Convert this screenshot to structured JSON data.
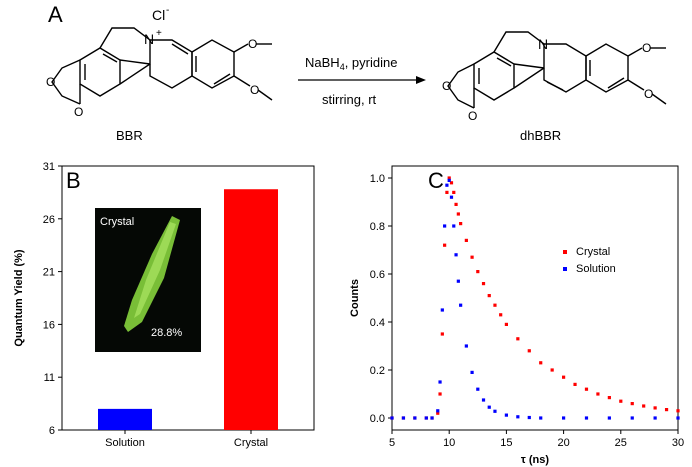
{
  "panels": {
    "a": "A",
    "b": "B",
    "c": "C"
  },
  "scheme": {
    "reactant_label": "BBR",
    "product_label": "dhBBR",
    "counterion": "Cl",
    "counterion_charge": "-",
    "cation_atom": "N",
    "cation_charge": "+",
    "product_atom": "N",
    "reagent_prefix": "NaBH",
    "reagent_sub": "4",
    "reagent_suffix": ", pyridine",
    "condition": "stirring, rt",
    "substituent": "O"
  },
  "chart_data": [
    {
      "type": "bar",
      "panel": "B",
      "categories": [
        "Solution",
        "Crystal"
      ],
      "values": [
        8.0,
        28.8
      ],
      "colors": [
        "#0000ff",
        "#ff0000"
      ],
      "title": "",
      "xlabel": "",
      "ylabel": "Quantum Yield (%)",
      "ylim": [
        6,
        31
      ],
      "yticks": [
        6,
        11,
        16,
        21,
        26,
        31
      ],
      "inset": {
        "label": "Crystal",
        "value_label": "28.8%"
      }
    },
    {
      "type": "scatter",
      "panel": "C",
      "title": "",
      "xlabel": "τ (ns)",
      "ylabel": "Counts",
      "xlim": [
        5,
        30
      ],
      "ylim": [
        -0.05,
        1.05
      ],
      "xticks": [
        5,
        10,
        15,
        20,
        25,
        30
      ],
      "yticks": [
        0.0,
        0.2,
        0.4,
        0.6,
        0.8,
        1.0
      ],
      "legend_position": "center-right",
      "series": [
        {
          "name": "Crystal",
          "color": "#ff0000",
          "x": [
            5,
            6,
            7,
            8,
            8.5,
            9,
            9.2,
            9.4,
            9.6,
            9.8,
            10,
            10.2,
            10.4,
            10.6,
            10.8,
            11,
            11.5,
            12,
            12.5,
            13,
            13.5,
            14,
            14.5,
            15,
            16,
            17,
            18,
            19,
            20,
            21,
            22,
            23,
            24,
            25,
            26,
            27,
            28,
            29,
            30
          ],
          "y": [
            0.0,
            0.0,
            0.0,
            0.0,
            0.0,
            0.02,
            0.1,
            0.35,
            0.72,
            0.94,
            1.0,
            0.98,
            0.94,
            0.89,
            0.85,
            0.81,
            0.74,
            0.67,
            0.61,
            0.56,
            0.51,
            0.47,
            0.43,
            0.39,
            0.33,
            0.28,
            0.23,
            0.2,
            0.17,
            0.14,
            0.12,
            0.1,
            0.085,
            0.07,
            0.06,
            0.05,
            0.042,
            0.035,
            0.03
          ]
        },
        {
          "name": "Solution",
          "color": "#0000ff",
          "x": [
            5,
            6,
            7,
            8,
            8.5,
            9,
            9.2,
            9.4,
            9.6,
            9.8,
            10,
            10.2,
            10.4,
            10.6,
            10.8,
            11,
            11.5,
            12,
            12.5,
            13,
            13.5,
            14,
            15,
            16,
            17,
            18,
            20,
            22,
            24,
            26,
            28,
            30
          ],
          "y": [
            0.0,
            0.0,
            0.0,
            0.0,
            0.0,
            0.03,
            0.15,
            0.45,
            0.8,
            0.97,
            0.99,
            0.92,
            0.8,
            0.68,
            0.57,
            0.47,
            0.3,
            0.19,
            0.12,
            0.075,
            0.045,
            0.028,
            0.012,
            0.005,
            0.002,
            0.0,
            0.0,
            0.0,
            0.0,
            0.0,
            0.0,
            0.0
          ]
        }
      ]
    }
  ]
}
